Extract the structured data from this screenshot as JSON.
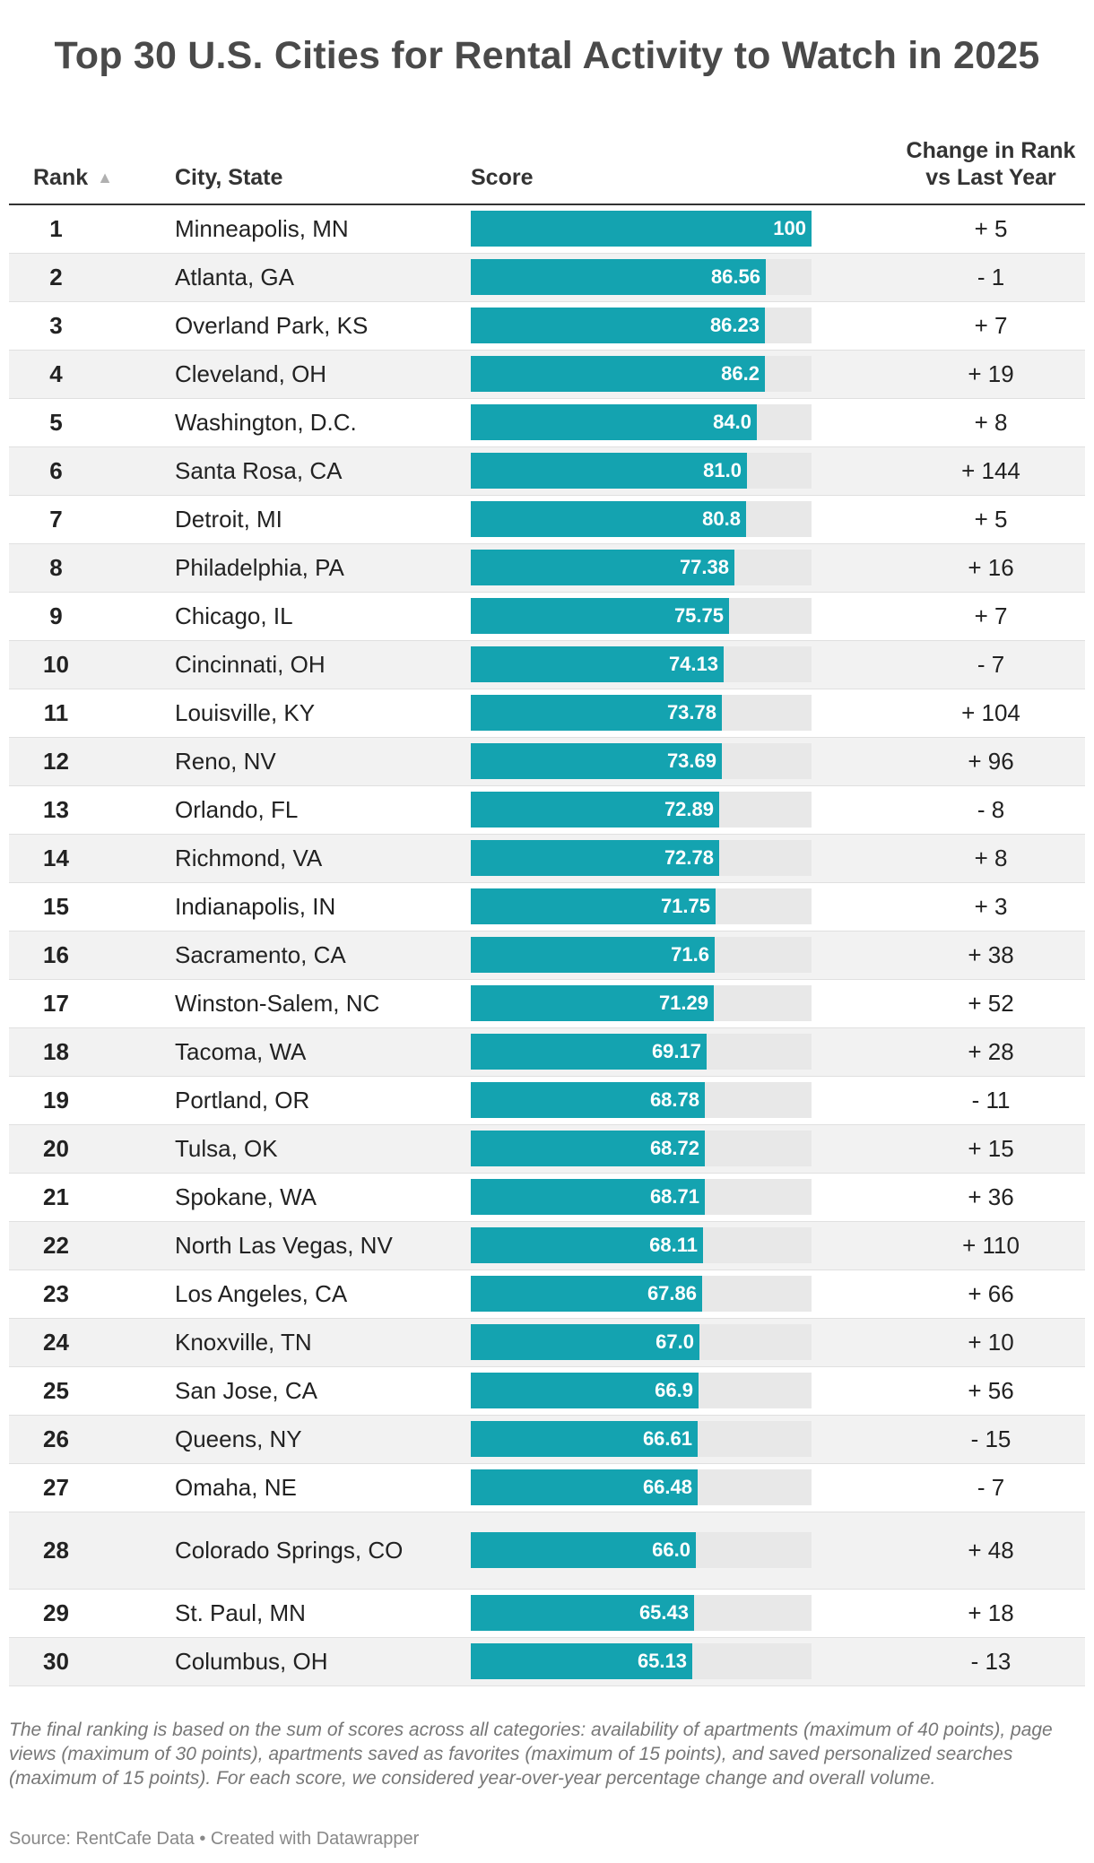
{
  "title": "Top 30 U.S. Cities for Rental Activity to Watch in 2025",
  "chart_data": {
    "type": "table",
    "title": "Top 30 U.S. Cities for Rental Activity to Watch in 2025",
    "columns": [
      "Rank",
      "City, State",
      "Score",
      "Change in Rank vs Last Year"
    ],
    "sort_indicator": "▲",
    "score_max": 100,
    "bar_color": "#14a3b0",
    "rows": [
      {
        "rank": "1",
        "city": "Minneapolis, MN",
        "score": 100,
        "score_label": "100",
        "change": "+ 5"
      },
      {
        "rank": "2",
        "city": "Atlanta, GA",
        "score": 86.56,
        "score_label": "86.56",
        "change": "- 1"
      },
      {
        "rank": "3",
        "city": "Overland Park, KS",
        "score": 86.23,
        "score_label": "86.23",
        "change": "+ 7"
      },
      {
        "rank": "4",
        "city": "Cleveland, OH",
        "score": 86.2,
        "score_label": "86.2",
        "change": "+ 19"
      },
      {
        "rank": "5",
        "city": "Washington, D.C.",
        "score": 84.0,
        "score_label": "84.0",
        "change": "+ 8"
      },
      {
        "rank": "6",
        "city": "Santa Rosa, CA",
        "score": 81.0,
        "score_label": "81.0",
        "change": "+ 144"
      },
      {
        "rank": "7",
        "city": "Detroit, MI",
        "score": 80.8,
        "score_label": "80.8",
        "change": "+ 5"
      },
      {
        "rank": "8",
        "city": "Philadelphia, PA",
        "score": 77.38,
        "score_label": "77.38",
        "change": "+ 16"
      },
      {
        "rank": "9",
        "city": "Chicago, IL",
        "score": 75.75,
        "score_label": "75.75",
        "change": "+ 7"
      },
      {
        "rank": "10",
        "city": "Cincinnati, OH",
        "score": 74.13,
        "score_label": "74.13",
        "change": "- 7"
      },
      {
        "rank": "11",
        "city": "Louisville, KY",
        "score": 73.78,
        "score_label": "73.78",
        "change": "+ 104"
      },
      {
        "rank": "12",
        "city": "Reno, NV",
        "score": 73.69,
        "score_label": "73.69",
        "change": "+ 96"
      },
      {
        "rank": "13",
        "city": "Orlando, FL",
        "score": 72.89,
        "score_label": "72.89",
        "change": "- 8"
      },
      {
        "rank": "14",
        "city": "Richmond, VA",
        "score": 72.78,
        "score_label": "72.78",
        "change": "+ 8"
      },
      {
        "rank": "15",
        "city": "Indianapolis, IN",
        "score": 71.75,
        "score_label": "71.75",
        "change": "+ 3"
      },
      {
        "rank": "16",
        "city": "Sacramento, CA",
        "score": 71.6,
        "score_label": "71.6",
        "change": "+ 38"
      },
      {
        "rank": "17",
        "city": "Winston-Salem, NC",
        "score": 71.29,
        "score_label": "71.29",
        "change": "+ 52"
      },
      {
        "rank": "18",
        "city": "Tacoma, WA",
        "score": 69.17,
        "score_label": "69.17",
        "change": "+ 28"
      },
      {
        "rank": "19",
        "city": "Portland, OR",
        "score": 68.78,
        "score_label": "68.78",
        "change": "- 11"
      },
      {
        "rank": "20",
        "city": "Tulsa, OK",
        "score": 68.72,
        "score_label": "68.72",
        "change": "+ 15"
      },
      {
        "rank": "21",
        "city": "Spokane, WA",
        "score": 68.71,
        "score_label": "68.71",
        "change": "+ 36"
      },
      {
        "rank": "22",
        "city": "North Las Vegas, NV",
        "score": 68.11,
        "score_label": "68.11",
        "change": "+ 110"
      },
      {
        "rank": "23",
        "city": "Los Angeles, CA",
        "score": 67.86,
        "score_label": "67.86",
        "change": "+ 66"
      },
      {
        "rank": "24",
        "city": "Knoxville, TN",
        "score": 67.0,
        "score_label": "67.0",
        "change": "+ 10"
      },
      {
        "rank": "25",
        "city": "San Jose, CA",
        "score": 66.9,
        "score_label": "66.9",
        "change": "+ 56"
      },
      {
        "rank": "26",
        "city": "Queens, NY",
        "score": 66.61,
        "score_label": "66.61",
        "change": "- 15"
      },
      {
        "rank": "27",
        "city": "Omaha, NE",
        "score": 66.48,
        "score_label": "66.48",
        "change": "- 7"
      },
      {
        "rank": "28",
        "city": "Colorado Springs, CO",
        "score": 66.0,
        "score_label": "66.0",
        "change": "+ 48"
      },
      {
        "rank": "29",
        "city": "St. Paul, MN",
        "score": 65.43,
        "score_label": "65.43",
        "change": "+ 18"
      },
      {
        "rank": "30",
        "city": "Columbus, OH",
        "score": 65.13,
        "score_label": "65.13",
        "change": "- 13"
      }
    ]
  },
  "footnote": "The final ranking is based on the sum of scores across all categories: availability of apartments (maximum of 40 points), page views (maximum of 30 points), apartments saved as favorites (maximum of 15 points), and saved personalized searches (maximum of 15 points). For each score, we considered year-over-year percentage change and overall volume.",
  "source": "Source: RentCafe Data • Created with Datawrapper"
}
